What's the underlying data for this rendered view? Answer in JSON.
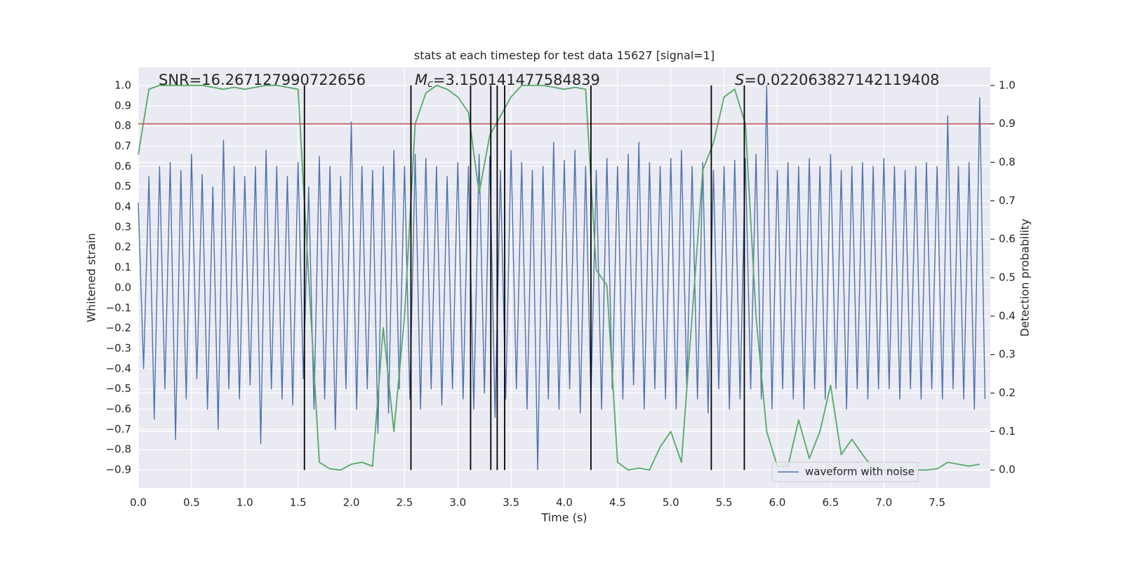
{
  "chart_data": {
    "type": "line",
    "title": "stats at each timestep for test data 15627 [signal=1]",
    "x_label": "Time (s)",
    "y_label": "Whitened strain",
    "y2_label": "Detection probability",
    "grid": true,
    "legend": "lower right",
    "xlim": [
      0,
      8.0
    ],
    "ylim": [
      -0.99,
      1.09
    ],
    "y2lim": [
      -0.047,
      1.047
    ],
    "xticks": [
      {
        "value": 0,
        "label": "0.0"
      },
      0.5,
      {
        "value": 1,
        "label": "1.0"
      },
      1.5,
      {
        "value": 2,
        "label": "2.0"
      },
      2.5,
      {
        "value": 3,
        "label": "3.0"
      },
      3.5,
      {
        "value": 4,
        "label": "4.0"
      },
      4.5,
      {
        "value": 5,
        "label": "5.0"
      },
      5.5,
      {
        "value": 6,
        "label": "6.0"
      },
      6.5,
      {
        "value": 7,
        "label": "7.0"
      },
      7.5
    ],
    "yticks": [
      {
        "value": -0.9,
        "label": "−0.9"
      },
      {
        "value": -0.8,
        "label": "−0.8"
      },
      {
        "value": -0.7,
        "label": "−0.7"
      },
      {
        "value": -0.6,
        "label": "−0.6"
      },
      {
        "value": -0.5,
        "label": "−0.5"
      },
      {
        "value": -0.4,
        "label": "−0.4"
      },
      {
        "value": -0.3,
        "label": "−0.3"
      },
      {
        "value": -0.2,
        "label": "−0.2"
      },
      {
        "value": -0.1,
        "label": "−0.1"
      },
      {
        "value": 0,
        "label": "0.0"
      },
      0.1,
      0.2,
      0.3,
      0.4,
      0.5,
      0.6,
      0.7,
      0.8,
      0.9,
      {
        "value": 1,
        "label": "1.0"
      }
    ],
    "y2ticks": [
      {
        "value": 0,
        "label": "0.0"
      },
      0.1,
      0.2,
      0.3,
      0.4,
      0.5,
      0.6,
      0.7,
      0.8,
      0.9,
      {
        "value": 1,
        "label": "1.0"
      }
    ],
    "series": [
      {
        "name": "waveform with noise",
        "color": "#4c72b0",
        "x": [
          0.0,
          0.05,
          0.1,
          0.15,
          0.2,
          0.25,
          0.3,
          0.35,
          0.4,
          0.45,
          0.5,
          0.55,
          0.6,
          0.65,
          0.7,
          0.75,
          0.8,
          0.85,
          0.9,
          0.95,
          1.0,
          1.05,
          1.1,
          1.15,
          1.2,
          1.25,
          1.3,
          1.35,
          1.4,
          1.45,
          1.5,
          1.55,
          1.6,
          1.65,
          1.7,
          1.75,
          1.8,
          1.85,
          1.9,
          1.95,
          2.0,
          2.05,
          2.1,
          2.15,
          2.2,
          2.25,
          2.3,
          2.35,
          2.4,
          2.45,
          2.5,
          2.55,
          2.6,
          2.65,
          2.7,
          2.75,
          2.8,
          2.85,
          2.9,
          2.95,
          3.0,
          3.05,
          3.1,
          3.15,
          3.2,
          3.25,
          3.3,
          3.35,
          3.4,
          3.45,
          3.5,
          3.55,
          3.6,
          3.65,
          3.7,
          3.75,
          3.8,
          3.85,
          3.9,
          3.95,
          4.0,
          4.05,
          4.1,
          4.15,
          4.2,
          4.25,
          4.3,
          4.35,
          4.4,
          4.45,
          4.5,
          4.55,
          4.6,
          4.65,
          4.7,
          4.75,
          4.8,
          4.85,
          4.9,
          4.95,
          5.0,
          5.05,
          5.1,
          5.15,
          5.2,
          5.25,
          5.3,
          5.35,
          5.4,
          5.45,
          5.5,
          5.55,
          5.6,
          5.65,
          5.7,
          5.75,
          5.8,
          5.85,
          5.9,
          5.95,
          6.0,
          6.05,
          6.1,
          6.15,
          6.2,
          6.25,
          6.3,
          6.35,
          6.4,
          6.45,
          6.5,
          6.55,
          6.6,
          6.65,
          6.7,
          6.75,
          6.8,
          6.85,
          6.9,
          6.95,
          7.0,
          7.05,
          7.1,
          7.15,
          7.2,
          7.25,
          7.3,
          7.35,
          7.4,
          7.45,
          7.5,
          7.55,
          7.6,
          7.65,
          7.7,
          7.75,
          7.8,
          7.85,
          7.9,
          7.95
        ],
        "values": [
          0.42,
          -0.4,
          0.55,
          -0.65,
          0.6,
          -0.5,
          0.62,
          -0.75,
          0.58,
          -0.55,
          0.66,
          -0.45,
          0.56,
          -0.6,
          0.5,
          -0.7,
          0.73,
          -0.5,
          0.6,
          -0.55,
          0.55,
          -0.48,
          0.6,
          -0.77,
          0.68,
          -0.5,
          0.6,
          -0.55,
          0.55,
          -0.58,
          0.62,
          -0.45,
          0.5,
          -0.6,
          0.65,
          -0.55,
          0.6,
          -0.7,
          0.55,
          -0.5,
          0.82,
          -0.6,
          0.6,
          -0.5,
          0.58,
          -0.72,
          0.6,
          -0.62,
          0.68,
          -0.5,
          0.6,
          -0.55,
          0.66,
          -0.6,
          0.64,
          -0.5,
          0.6,
          -0.58,
          0.55,
          -0.5,
          0.62,
          -0.55,
          0.6,
          -0.6,
          0.66,
          -0.52,
          0.65,
          -0.64,
          0.58,
          -0.55,
          0.68,
          -0.5,
          0.62,
          -0.6,
          0.58,
          -0.9,
          0.6,
          -0.55,
          0.72,
          -0.6,
          0.63,
          -0.5,
          0.68,
          -0.62,
          0.6,
          -0.55,
          0.58,
          -0.6,
          0.64,
          -0.5,
          0.6,
          -0.55,
          0.66,
          -0.48,
          0.72,
          -0.6,
          0.62,
          -0.5,
          0.6,
          -0.55,
          0.64,
          -0.6,
          0.68,
          -0.5,
          0.6,
          -0.55,
          0.62,
          -0.62,
          0.58,
          -0.5,
          0.6,
          -0.6,
          0.63,
          -0.55,
          0.64,
          -0.5,
          0.66,
          -0.55,
          1.0,
          -0.6,
          0.58,
          -0.5,
          0.62,
          -0.55,
          0.6,
          -0.6,
          0.64,
          -0.5,
          0.6,
          -0.55,
          0.66,
          -0.5,
          0.58,
          -0.6,
          0.6,
          -0.5,
          0.62,
          -0.55,
          0.6,
          -0.5,
          0.64,
          -0.5,
          0.6,
          -0.55,
          0.58,
          -0.5,
          0.6,
          -0.55,
          0.62,
          -0.5,
          0.6,
          -0.55,
          0.85,
          -0.5,
          0.6,
          -0.55,
          0.62,
          -0.6,
          0.94,
          -0.55
        ]
      },
      {
        "color": "#55a868",
        "axis": "y2",
        "x": [
          0.0,
          0.1,
          0.2,
          0.3,
          0.4,
          0.5,
          0.6,
          0.7,
          0.8,
          0.9,
          1.0,
          1.1,
          1.2,
          1.3,
          1.4,
          1.5,
          1.6,
          1.7,
          1.8,
          1.9,
          2.0,
          2.1,
          2.2,
          2.3,
          2.4,
          2.5,
          2.6,
          2.7,
          2.8,
          2.9,
          3.0,
          3.1,
          3.2,
          3.3,
          3.4,
          3.5,
          3.6,
          3.7,
          3.8,
          3.9,
          4.0,
          4.1,
          4.2,
          4.3,
          4.4,
          4.5,
          4.6,
          4.7,
          4.8,
          4.9,
          5.0,
          5.1,
          5.2,
          5.3,
          5.4,
          5.5,
          5.6,
          5.7,
          5.8,
          5.9,
          6.0,
          6.1,
          6.2,
          6.3,
          6.4,
          6.5,
          6.6,
          6.7,
          6.8,
          6.9,
          7.0,
          7.1,
          7.2,
          7.3,
          7.4,
          7.5,
          7.6,
          7.7,
          7.8,
          7.9
        ],
        "values": [
          0.82,
          0.99,
          1.0,
          1.0,
          1.0,
          1.0,
          1.0,
          0.995,
          0.99,
          0.995,
          0.99,
          0.995,
          1.0,
          1.0,
          0.995,
          0.99,
          0.5,
          0.02,
          0.003,
          0.0,
          0.015,
          0.02,
          0.01,
          0.37,
          0.1,
          0.4,
          0.9,
          0.98,
          1.0,
          0.99,
          0.97,
          0.93,
          0.72,
          0.87,
          0.92,
          0.97,
          1.0,
          1.0,
          1.0,
          0.995,
          0.99,
          0.995,
          0.99,
          0.52,
          0.48,
          0.02,
          0.0,
          0.005,
          0.0,
          0.06,
          0.1,
          0.02,
          0.4,
          0.78,
          0.85,
          0.97,
          0.99,
          0.9,
          0.4,
          0.1,
          0.01,
          0.01,
          0.13,
          0.03,
          0.1,
          0.22,
          0.04,
          0.08,
          0.04,
          0.005,
          0.0,
          0.0,
          0.0,
          0.0,
          0.0,
          0.003,
          0.02,
          0.015,
          0.01,
          0.015
        ]
      }
    ],
    "hlines": [
      {
        "value": 0.9,
        "axis": "y2",
        "color": "#c44e52"
      }
    ],
    "vlines": {
      "x": [
        1.56,
        2.56,
        3.12,
        3.31,
        3.37,
        3.44,
        4.25,
        5.38,
        5.69
      ],
      "ymin": 0,
      "ymax": 1,
      "axis": "y2",
      "color": "#000000"
    },
    "annotations": [
      {
        "text": "SNR=16.267127990722656"
      },
      {
        "symbol": "M",
        "sub": "c",
        "text": "=3.150141477584839"
      },
      {
        "symbol": "S",
        "text": "=0.022063827142119408"
      }
    ]
  }
}
